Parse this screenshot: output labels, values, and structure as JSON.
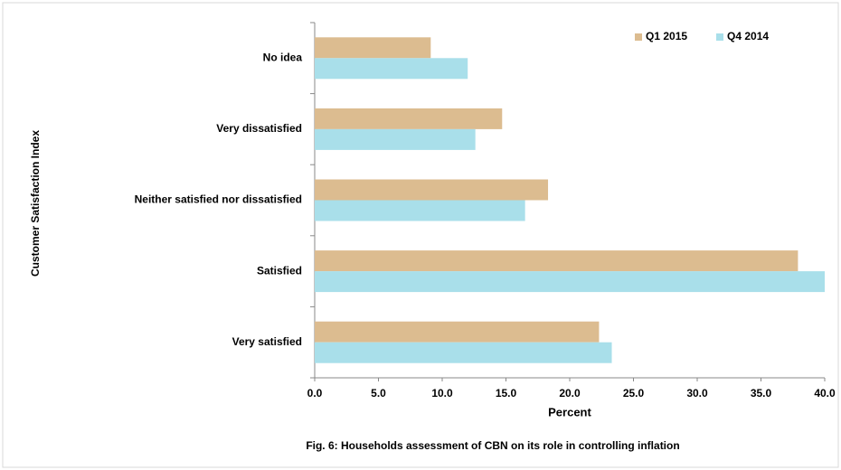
{
  "chart_data": {
    "type": "hbar",
    "title": "Fig. 6: Households assessment of CBN on its role in controlling inflation",
    "x_label": "Percent",
    "y_label": "Customer Satisfaction Index",
    "categories": [
      "No idea",
      "Very dissatisfied",
      "Neither satisfied nor dissatisfied",
      "Satisfied",
      "Very satisfied"
    ],
    "series": [
      {
        "name": "Q1 2015",
        "color": "#dcbc90",
        "values": [
          9.1,
          14.7,
          18.3,
          37.9,
          22.3
        ]
      },
      {
        "name": "Q4 2014",
        "color": "#a9dfea",
        "values": [
          12.0,
          12.6,
          16.5,
          40.0,
          23.3
        ]
      }
    ],
    "xlim": [
      0,
      40
    ],
    "xticks": [
      {
        "value": 0,
        "label": "0.0"
      },
      {
        "value": 5,
        "label": "5.0"
      },
      {
        "value": 10,
        "label": "10.0"
      },
      {
        "value": 15,
        "label": "15.0"
      },
      {
        "value": 20,
        "label": "20.0"
      },
      {
        "value": 25,
        "label": "25.0"
      },
      {
        "value": 30,
        "label": "30.0"
      },
      {
        "value": 35,
        "label": "35.0"
      },
      {
        "value": 40,
        "label": "40.0"
      }
    ],
    "legend": "top-right"
  }
}
